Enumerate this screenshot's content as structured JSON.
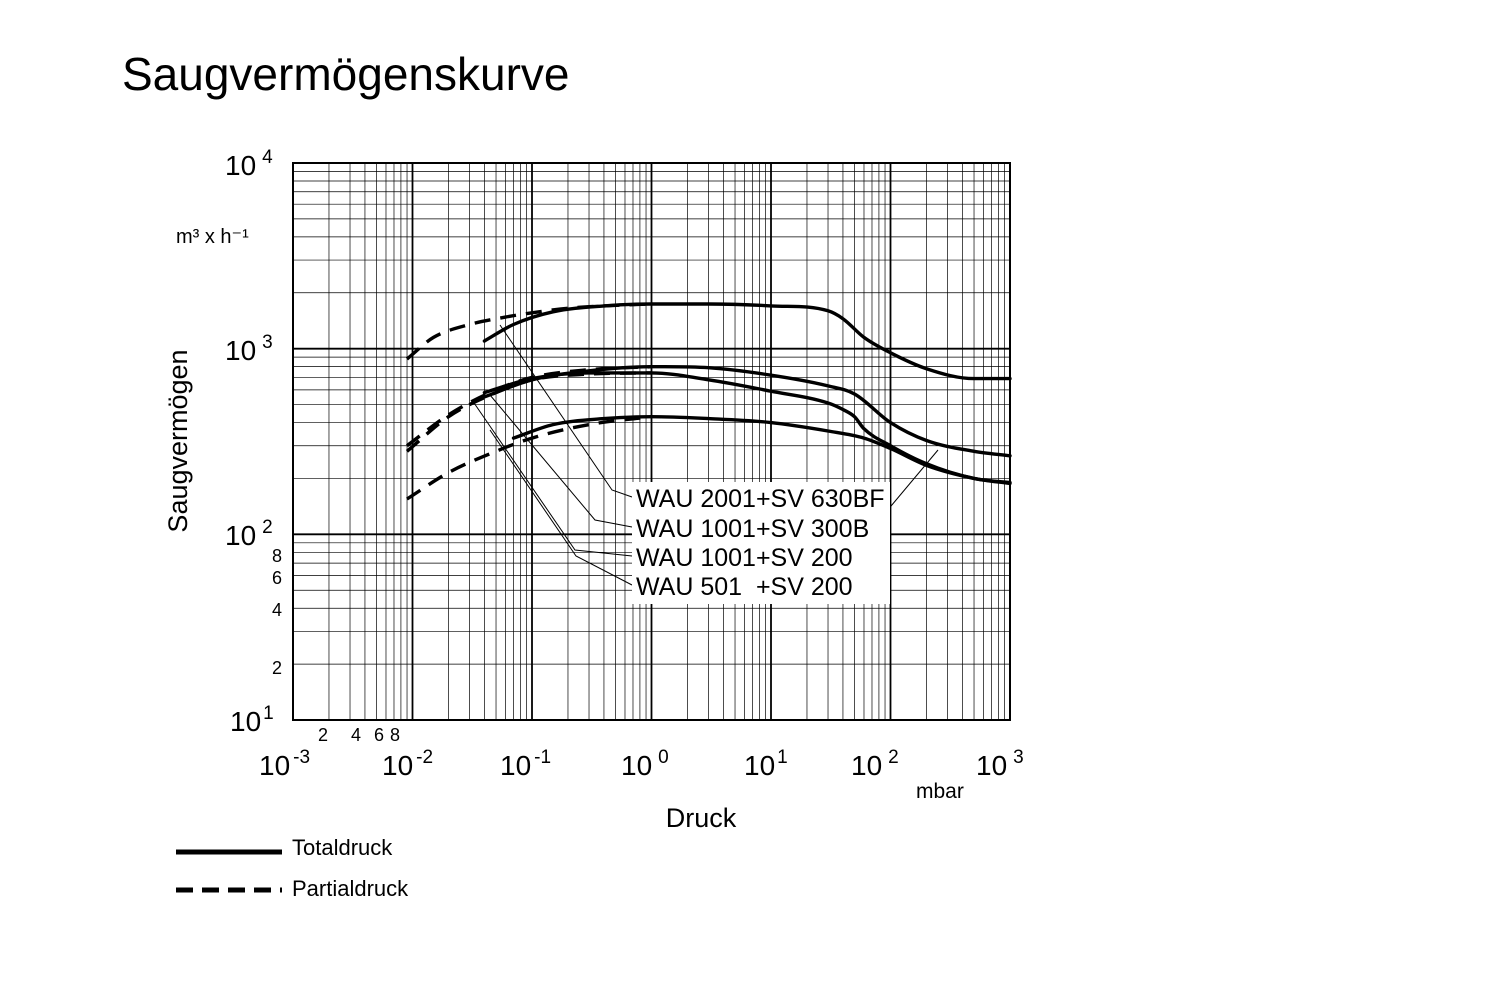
{
  "chart_data": {
    "type": "line",
    "title": "Saugvermögenskurve",
    "xlabel": "Druck",
    "x_unit": "mbar",
    "ylabel": "Saugvermögen",
    "y_unit": "m³ x h⁻¹",
    "x_scale": "log",
    "y_scale": "log",
    "xlim": [
      0.001,
      1000
    ],
    "ylim": [
      10,
      10000
    ],
    "grid": true,
    "x_decade_ticks": [
      {
        "base": "10",
        "exp": "-3"
      },
      {
        "base": "10",
        "exp": "-2"
      },
      {
        "base": "10",
        "exp": "-1"
      },
      {
        "base": "10",
        "exp": "0"
      },
      {
        "base": "10",
        "exp": "1"
      },
      {
        "base": "10",
        "exp": "2"
      },
      {
        "base": "10",
        "exp": "3"
      }
    ],
    "x_minor_ticks": [
      "2",
      "4",
      "6",
      "8"
    ],
    "y_decade_ticks": [
      {
        "base": "10",
        "exp": "1"
      },
      {
        "base": "10",
        "exp": "2"
      },
      {
        "base": "10",
        "exp": "3"
      },
      {
        "base": "10",
        "exp": "4"
      }
    ],
    "y_minor_ticks": [
      "2",
      "4",
      "6",
      "8"
    ],
    "labels": [
      "WAU 2001+SV 630BF",
      "WAU 1001+SV 300B",
      "WAU 1001+SV 200",
      "WAU 501  +SV 200"
    ],
    "legend": [
      {
        "label": "Totaldruck",
        "style": "solid"
      },
      {
        "label": "Partialdruck",
        "style": "dashed"
      }
    ],
    "series": [
      {
        "name": "WAU 2001+SV 630BF",
        "style": "solid",
        "x": [
          0.04,
          0.07,
          0.15,
          0.4,
          1,
          3,
          10,
          30,
          40,
          60,
          100,
          200,
          500,
          1000
        ],
        "y": [
          1100,
          1350,
          1580,
          1700,
          1740,
          1740,
          1700,
          1600,
          1450,
          1150,
          950,
          780,
          690,
          690
        ]
      },
      {
        "name": "WAU 2001+SV 630BF",
        "style": "dashed",
        "x": [
          0.009,
          0.015,
          0.03,
          0.06,
          0.1,
          0.2,
          0.4,
          1
        ],
        "y": [
          880,
          1150,
          1350,
          1480,
          1560,
          1650,
          1700,
          1740
        ]
      },
      {
        "name": "WAU 1001+SV 300B",
        "style": "solid",
        "x": [
          0.04,
          0.1,
          0.3,
          1,
          3,
          10,
          30,
          50,
          100,
          200,
          500,
          1000
        ],
        "y": [
          550,
          680,
          760,
          800,
          790,
          720,
          630,
          570,
          400,
          320,
          280,
          265
        ]
      },
      {
        "name": "WAU 1001+SV 300B",
        "style": "dashed",
        "x": [
          0.009,
          0.02,
          0.05,
          0.1,
          0.3,
          1
        ],
        "y": [
          300,
          440,
          600,
          700,
          770,
          800
        ]
      },
      {
        "name": "WAU 1001+SV 200",
        "style": "solid",
        "x": [
          0.04,
          0.1,
          0.3,
          1,
          3,
          10,
          30,
          40,
          50,
          60,
          100,
          200,
          500,
          1000
        ],
        "y": [
          580,
          690,
          740,
          740,
          680,
          590,
          510,
          470,
          430,
          370,
          300,
          240,
          200,
          190
        ]
      },
      {
        "name": "WAU 1001+SV 200",
        "style": "dashed",
        "x": [
          0.009,
          0.02,
          0.05,
          0.1,
          0.3,
          1
        ],
        "y": [
          280,
          430,
          580,
          680,
          730,
          740
        ]
      },
      {
        "name": "WAU 501  +SV 200",
        "style": "solid",
        "x": [
          0.07,
          0.15,
          0.4,
          1,
          3,
          10,
          30,
          60,
          100,
          200,
          500,
          1000
        ],
        "y": [
          330,
          390,
          420,
          430,
          420,
          400,
          360,
          330,
          290,
          235,
          200,
          188
        ]
      },
      {
        "name": "WAU 501  +SV 200",
        "style": "dashed",
        "x": [
          0.009,
          0.02,
          0.05,
          0.1,
          0.3,
          1
        ],
        "y": [
          155,
          215,
          280,
          330,
          390,
          430
        ]
      }
    ]
  }
}
